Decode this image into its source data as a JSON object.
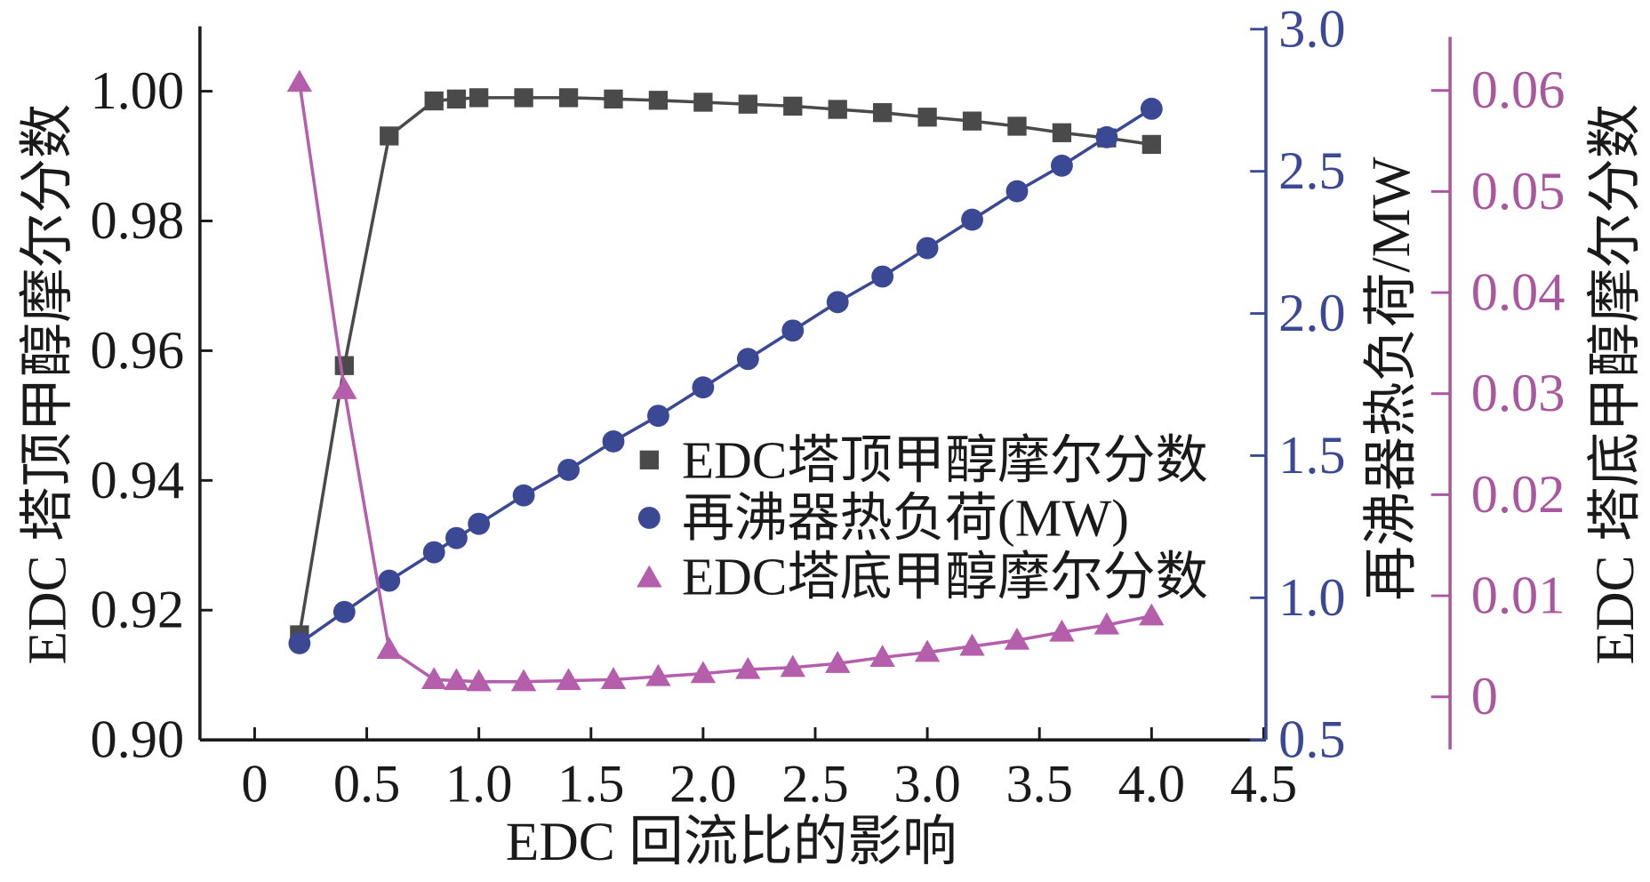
{
  "chart_data": {
    "type": "line",
    "title": "",
    "xlabel": "EDC 回流比的影响",
    "xlim": [
      -0.244,
      4.51
    ],
    "xticks": [
      0,
      0.5,
      1.0,
      1.5,
      2.0,
      2.5,
      3.0,
      3.5,
      4.0,
      4.5
    ],
    "xtick_labels": [
      "0",
      "0.5",
      "1.0",
      "1.5",
      "2.0",
      "2.5",
      "3.0",
      "3.5",
      "4.0",
      "4.5"
    ],
    "grid": false,
    "y_axes": [
      {
        "position": "left",
        "label": "EDC 塔顶甲醇摩尔分数",
        "ylim": [
          0.9,
          1.01
        ],
        "ticks": [
          0.9,
          0.92,
          0.94,
          0.96,
          0.98,
          1.0
        ],
        "tick_labels": [
          "0.90",
          "0.92",
          "0.94",
          "0.96",
          "0.98",
          "1.00"
        ],
        "color": "#1a1a1a"
      },
      {
        "position": "right",
        "label": "再沸器热负荷/MW",
        "ylim": [
          0.5,
          3.01
        ],
        "ticks": [
          0.5,
          1.0,
          1.5,
          2.0,
          2.5,
          3.0
        ],
        "tick_labels": [
          "0.5",
          "1.0",
          "1.5",
          "2.0",
          "2.5",
          "3.0"
        ],
        "color": "#3b4894"
      },
      {
        "position": "far-right",
        "label": "EDC 塔底甲醇摩尔分数",
        "ylim": [
          -0.0052,
          0.0653
        ],
        "ticks": [
          0,
          0.01,
          0.02,
          0.03,
          0.04,
          0.05,
          0.06
        ],
        "tick_labels": [
          "0",
          "0.01",
          "0.02",
          "0.03",
          "0.04",
          "0.05",
          "0.06"
        ],
        "color": "#a9579f"
      }
    ],
    "x": [
      0.2,
      0.4,
      0.6,
      0.8,
      0.9,
      1.0,
      1.2,
      1.4,
      1.6,
      1.8,
      2.0,
      2.2,
      2.4,
      2.6,
      2.8,
      3.0,
      3.2,
      3.4,
      3.6,
      3.8,
      4.0
    ],
    "series": [
      {
        "name": "EDC塔顶甲醇摩尔分数",
        "axis": "left",
        "marker": "square",
        "color": "#4a4a4a",
        "values": [
          0.9162,
          0.9577,
          0.9931,
          0.9985,
          0.9988,
          0.999,
          0.999,
          0.999,
          0.9988,
          0.9986,
          0.9983,
          0.998,
          0.9977,
          0.9972,
          0.9967,
          0.996,
          0.9954,
          0.9946,
          0.9936,
          0.9928,
          0.9918
        ]
      },
      {
        "name": "再沸器热负荷(MW)",
        "axis": "right",
        "marker": "circle",
        "color": "#3b4894",
        "values": [
          0.84,
          0.95,
          1.06,
          1.16,
          1.21,
          1.26,
          1.36,
          1.45,
          1.55,
          1.64,
          1.74,
          1.84,
          1.94,
          2.04,
          2.13,
          2.23,
          2.33,
          2.43,
          2.52,
          2.62,
          2.72
        ]
      },
      {
        "name": "EDC塔底甲醇摩尔分数",
        "axis": "far-right",
        "marker": "triangle",
        "color": "#b55fac",
        "values": [
          0.0608,
          0.0304,
          0.0047,
          0.0017,
          0.0016,
          0.0015,
          0.0015,
          0.0016,
          0.0017,
          0.002,
          0.0023,
          0.0027,
          0.0029,
          0.0033,
          0.0039,
          0.0044,
          0.005,
          0.0056,
          0.0064,
          0.0071,
          0.008
        ]
      }
    ],
    "legend": {
      "position": "center-right"
    }
  }
}
